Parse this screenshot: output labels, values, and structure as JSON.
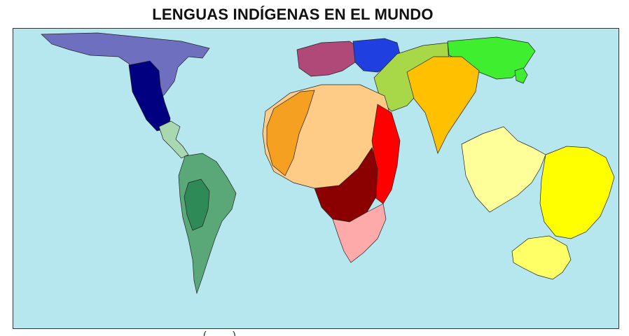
{
  "title": "LENGUAS INDÍGENAS EN EL MUNDO",
  "map": {
    "ocean_color": "#b6e6ee",
    "regions": [
      {
        "name": "north-america",
        "color": "#6f6fbf"
      },
      {
        "name": "north-america-dense",
        "color": "#000080"
      },
      {
        "name": "central-america",
        "color": "#a8d8b0"
      },
      {
        "name": "south-america",
        "color": "#5aa878"
      },
      {
        "name": "south-america-dark",
        "color": "#2e8b57"
      },
      {
        "name": "europe",
        "color": "#b04878"
      },
      {
        "name": "russia-europe",
        "color": "#1f3fe0"
      },
      {
        "name": "central-asia",
        "color": "#a8d848"
      },
      {
        "name": "east-asia",
        "color": "#40ee30"
      },
      {
        "name": "west-africa",
        "color": "#ffcc88"
      },
      {
        "name": "west-africa-orange",
        "color": "#f5a020"
      },
      {
        "name": "east-africa",
        "color": "#ff0000"
      },
      {
        "name": "central-africa",
        "color": "#8b0000"
      },
      {
        "name": "southern-africa",
        "color": "#ffaaaa"
      },
      {
        "name": "south-asia",
        "color": "#ffc000"
      },
      {
        "name": "southeast-asia",
        "color": "#ffff99"
      },
      {
        "name": "papua",
        "color": "#ffff00"
      },
      {
        "name": "australia",
        "color": "#ffff66"
      }
    ]
  },
  "subtitle_fragment": "( ... )"
}
